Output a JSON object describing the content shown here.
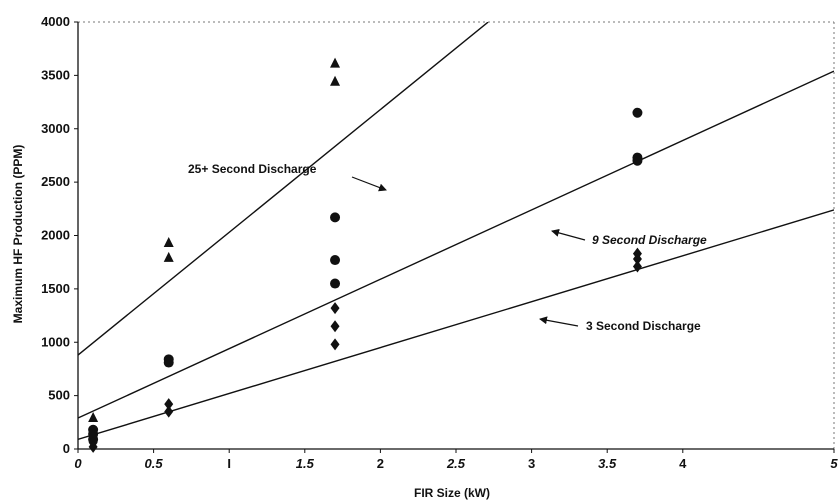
{
  "chart_data": {
    "type": "scatter",
    "xlabel": "FIR Size (kW)",
    "ylabel": "Maximum HF Production (PPM)",
    "xlim": [
      0,
      5
    ],
    "ylim": [
      0,
      4000
    ],
    "x_ticks": [
      {
        "value": 0,
        "label": "0"
      },
      {
        "value": 0.5,
        "label": "0.5"
      },
      {
        "value": 1,
        "label": "I"
      },
      {
        "value": 1.5,
        "label": "1.5"
      },
      {
        "value": 2,
        "label": "2"
      },
      {
        "value": 2.5,
        "label": "2.5"
      },
      {
        "value": 3,
        "label": "3"
      },
      {
        "value": 3.5,
        "label": "3.5"
      },
      {
        "value": 4,
        "label": "4"
      },
      {
        "value": 5,
        "label": "5"
      }
    ],
    "y_ticks": [
      {
        "value": 0,
        "label": "0"
      },
      {
        "value": 500,
        "label": "500"
      },
      {
        "value": 1000,
        "label": "1000"
      },
      {
        "value": 1500,
        "label": "1500"
      },
      {
        "value": 2000,
        "label": "2000"
      },
      {
        "value": 2500,
        "label": "2500"
      },
      {
        "value": 3000,
        "label": "3000"
      },
      {
        "value": 3500,
        "label": "3500"
      },
      {
        "value": 4000,
        "label": "4000"
      }
    ],
    "grid": false,
    "series": [
      {
        "name": "25+ Second Discharge",
        "marker": "triangle",
        "points": [
          [
            0.1,
            290
          ],
          [
            0.6,
            1930
          ],
          [
            0.6,
            1790
          ],
          [
            1.7,
            3610
          ],
          [
            1.7,
            3440
          ]
        ],
        "fit": {
          "intercept": 880,
          "slope": 1150
        }
      },
      {
        "name": "9 Second Discharge",
        "marker": "circle",
        "points": [
          [
            0.1,
            180
          ],
          [
            0.1,
            140
          ],
          [
            0.1,
            90
          ],
          [
            0.6,
            840
          ],
          [
            0.6,
            810
          ],
          [
            1.7,
            2170
          ],
          [
            1.7,
            1770
          ],
          [
            1.7,
            1550
          ],
          [
            3.7,
            3150
          ],
          [
            3.7,
            2730
          ],
          [
            3.7,
            2700
          ]
        ],
        "fit": {
          "intercept": 290,
          "slope": 650
        }
      },
      {
        "name": "3 Second Discharge",
        "marker": "diamond",
        "points": [
          [
            0.1,
            120
          ],
          [
            0.1,
            60
          ],
          [
            0.1,
            20
          ],
          [
            0.6,
            420
          ],
          [
            0.6,
            350
          ],
          [
            1.7,
            1320
          ],
          [
            1.7,
            1150
          ],
          [
            1.7,
            980
          ],
          [
            3.7,
            1830
          ],
          [
            3.7,
            1780
          ],
          [
            3.7,
            1710
          ]
        ],
        "fit": {
          "intercept": 90,
          "slope": 430
        }
      }
    ],
    "annotations": [
      {
        "text": "25+ Second Discharge",
        "italic": false
      },
      {
        "text": "9 Second Discharge",
        "italic": true
      },
      {
        "text": "3 Second Discharge",
        "italic": false
      }
    ]
  }
}
